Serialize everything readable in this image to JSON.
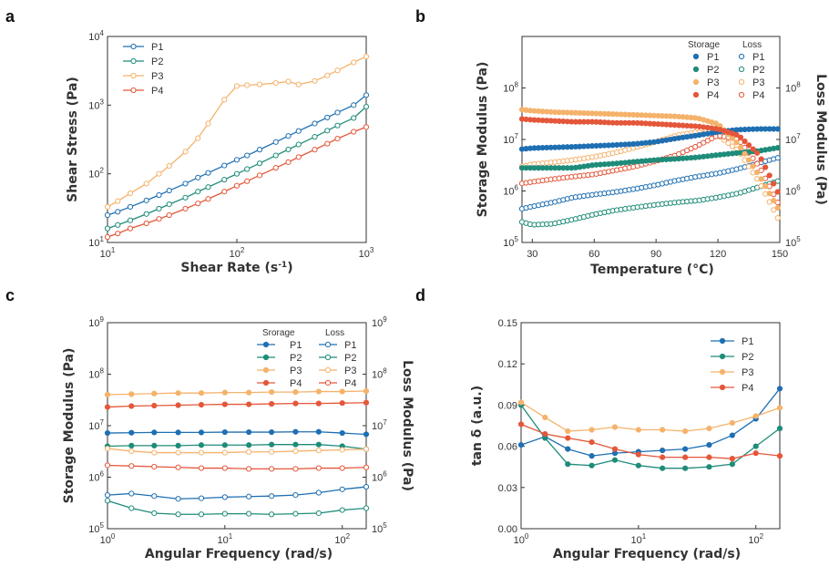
{
  "colors": {
    "P1": "#1f6fb2",
    "P2": "#1f8c7a",
    "P3": "#f5b26b",
    "P4": "#e4573a"
  },
  "chart_data": [
    {
      "panel": "a",
      "type": "line",
      "xscale": "log",
      "yscale": "log",
      "xlim": [
        10,
        1000
      ],
      "ylim": [
        10,
        10000
      ],
      "xlabel": "Shear Rate (s-1)",
      "ylabel": "Shear Stress (Pa)",
      "xticks": [
        "10^1",
        "10^2",
        "10^3"
      ],
      "yticks": [
        "10^1",
        "10^2",
        "10^3",
        "10^4"
      ],
      "legend": "top-left",
      "x": [
        10,
        12,
        15,
        20,
        25,
        30,
        40,
        50,
        60,
        80,
        100,
        120,
        150,
        200,
        250,
        300,
        400,
        500,
        600,
        800,
        1000
      ],
      "series": [
        {
          "name": "P1",
          "values": [
            25,
            28,
            33,
            41,
            49,
            57,
            72,
            88,
            103,
            132,
            160,
            185,
            225,
            290,
            355,
            420,
            540,
            660,
            780,
            1000,
            1400
          ]
        },
        {
          "name": "P2",
          "values": [
            16,
            18,
            21,
            26,
            31,
            36,
            45,
            55,
            64,
            82,
            100,
            117,
            142,
            185,
            226,
            267,
            345,
            425,
            505,
            650,
            950
          ]
        },
        {
          "name": "P3",
          "values": [
            33,
            40,
            52,
            72,
            100,
            130,
            210,
            330,
            540,
            1200,
            1900,
            1950,
            2000,
            2100,
            2200,
            2000,
            2250,
            2700,
            3200,
            4200,
            5100
          ]
        },
        {
          "name": "P4",
          "values": [
            12,
            13.5,
            16,
            19,
            22,
            25,
            31,
            37,
            43,
            55,
            67,
            78,
            95,
            122,
            148,
            175,
            225,
            275,
            325,
            410,
            480
          ]
        }
      ]
    },
    {
      "panel": "b",
      "type": "scatter",
      "xlabel": "Temperature (°C)",
      "ylabel_left": "Storage Modulus (Pa)",
      "ylabel_right": "Loss Modulus (Pa)",
      "xlim": [
        25,
        150
      ],
      "ylim": [
        100000,
        1000000000
      ],
      "yscale": "log",
      "xticks": [
        "30",
        "60",
        "90",
        "120",
        "150"
      ],
      "yticks_left": [
        "10^5",
        "10^6",
        "10^7",
        "10^8"
      ],
      "yticks_right": [
        "10^5",
        "10^6",
        "10^7",
        "10^8"
      ],
      "legend_headers": [
        "Storage",
        "Loss"
      ],
      "legend_labels": [
        "P1",
        "P2",
        "P3",
        "P4"
      ],
      "x": [
        25,
        30,
        40,
        50,
        60,
        70,
        80,
        90,
        100,
        110,
        120,
        130,
        140,
        150
      ],
      "storage": [
        {
          "name": "P1",
          "values": [
            6500000,
            6800000,
            7000000,
            7200000,
            7500000,
            7800000,
            8200000,
            9000000,
            10500000,
            12000000,
            14000000,
            15500000,
            16000000,
            16000000
          ]
        },
        {
          "name": "P2",
          "values": [
            2800000,
            2800000,
            2800000,
            2800000,
            3200000,
            3400000,
            3700000,
            4000000,
            4200000,
            4500000,
            5000000,
            5500000,
            6000000,
            7000000
          ]
        },
        {
          "name": "P3",
          "values": [
            38000000,
            36000000,
            34000000,
            33000000,
            32000000,
            31000000,
            30000000,
            29000000,
            28000000,
            26000000,
            20000000,
            8000000,
            2000000,
            400000
          ]
        },
        {
          "name": "P4",
          "values": [
            25000000,
            24000000,
            23000000,
            22000000,
            22000000,
            21000000,
            21000000,
            20000000,
            19000000,
            18000000,
            16000000,
            12000000,
            5000000,
            800000
          ]
        }
      ],
      "loss": [
        {
          "name": "P1",
          "values": [
            450000,
            500000,
            600000,
            750000,
            850000,
            950000,
            1100000,
            1300000,
            1600000,
            1900000,
            2200000,
            2700000,
            3500000,
            4500000
          ]
        },
        {
          "name": "P2",
          "values": [
            250000,
            220000,
            230000,
            280000,
            350000,
            420000,
            480000,
            540000,
            600000,
            650000,
            750000,
            900000,
            1200000,
            1600000
          ]
        },
        {
          "name": "P3",
          "values": [
            3000000,
            3300000,
            3600000,
            4000000,
            4600000,
            5500000,
            7000000,
            9000000,
            12000000,
            14000000,
            12000000,
            6000000,
            1500000,
            250000
          ]
        },
        {
          "name": "P4",
          "values": [
            1400000,
            1500000,
            1700000,
            1900000,
            2100000,
            2500000,
            3000000,
            3800000,
            5000000,
            7500000,
            12000000,
            10000000,
            3000000,
            500000
          ]
        }
      ]
    },
    {
      "panel": "c",
      "type": "line",
      "xscale": "log",
      "yscale": "log",
      "xlim": [
        1,
        160
      ],
      "ylim": [
        100000,
        1000000000
      ],
      "xlabel": "Angular Frequency (rad/s)",
      "ylabel_left": "Storage Modulus (Pa)",
      "ylabel_right": "Loss Modulus (Pa)",
      "xticks": [
        "10^0",
        "10^1",
        "10^2"
      ],
      "yticks_left": [
        "10^5",
        "10^6",
        "10^7",
        "10^8",
        "10^9"
      ],
      "yticks_right": [
        "10^5",
        "10^6",
        "10^7",
        "10^8",
        "10^9"
      ],
      "legend_headers": [
        "Srorage",
        "Loss"
      ],
      "legend_labels": [
        "P1",
        "P2",
        "P3",
        "P4"
      ],
      "x": [
        1,
        1.6,
        2.5,
        4,
        6.3,
        10,
        16,
        25,
        40,
        63,
        100,
        160
      ],
      "storage": [
        {
          "name": "P1",
          "values": [
            7200000,
            7300000,
            7400000,
            7400000,
            7400000,
            7500000,
            7500000,
            7500000,
            7600000,
            7600000,
            7200000,
            6800000
          ]
        },
        {
          "name": "P2",
          "values": [
            4000000,
            4100000,
            4100000,
            4100000,
            4200000,
            4200000,
            4200000,
            4300000,
            4300000,
            4300000,
            4000000,
            3500000
          ]
        },
        {
          "name": "P3",
          "values": [
            40000000,
            41000000,
            42000000,
            43000000,
            43000000,
            44000000,
            44000000,
            45000000,
            45000000,
            46000000,
            46000000,
            47000000
          ]
        },
        {
          "name": "P4",
          "values": [
            23000000,
            24000000,
            24500000,
            25000000,
            25500000,
            26000000,
            26000000,
            26500000,
            27000000,
            27000000,
            27500000,
            28000000
          ]
        }
      ],
      "loss": [
        {
          "name": "P1",
          "values": [
            450000,
            480000,
            430000,
            380000,
            390000,
            410000,
            420000,
            430000,
            450000,
            500000,
            580000,
            650000
          ]
        },
        {
          "name": "P2",
          "values": [
            350000,
            250000,
            200000,
            190000,
            190000,
            195000,
            195000,
            190000,
            195000,
            200000,
            230000,
            250000
          ]
        },
        {
          "name": "P3",
          "values": [
            3600000,
            3200000,
            3000000,
            3000000,
            3000000,
            3000000,
            3100000,
            3100000,
            3200000,
            3300000,
            3400000,
            3500000
          ]
        },
        {
          "name": "P4",
          "values": [
            1700000,
            1650000,
            1600000,
            1550000,
            1500000,
            1500000,
            1450000,
            1450000,
            1450000,
            1500000,
            1500000,
            1550000
          ]
        }
      ]
    },
    {
      "panel": "d",
      "type": "line",
      "xscale": "log",
      "yscale": "linear",
      "xlim": [
        1,
        160
      ],
      "ylim": [
        0,
        0.15
      ],
      "xlabel": "Angular Frequency (rad/s)",
      "ylabel": "tan δ (a.u.)",
      "xticks": [
        "10^0",
        "10^1",
        "10^2"
      ],
      "yticks": [
        "0.00",
        "0.03",
        "0.06",
        "0.09",
        "0.12",
        "0.15"
      ],
      "legend": "top-right",
      "x": [
        1,
        1.6,
        2.5,
        4,
        6.3,
        10,
        16,
        25,
        40,
        63,
        100,
        160
      ],
      "series": [
        {
          "name": "P1",
          "values": [
            0.061,
            0.067,
            0.058,
            0.053,
            0.055,
            0.056,
            0.057,
            0.058,
            0.061,
            0.068,
            0.08,
            0.102
          ]
        },
        {
          "name": "P2",
          "values": [
            0.09,
            0.066,
            0.047,
            0.046,
            0.05,
            0.046,
            0.044,
            0.044,
            0.045,
            0.047,
            0.06,
            0.073
          ]
        },
        {
          "name": "P3",
          "values": [
            0.092,
            0.081,
            0.071,
            0.072,
            0.074,
            0.072,
            0.072,
            0.071,
            0.073,
            0.077,
            0.082,
            0.088
          ]
        },
        {
          "name": "P4",
          "values": [
            0.076,
            0.069,
            0.066,
            0.063,
            0.058,
            0.054,
            0.052,
            0.052,
            0.052,
            0.051,
            0.055,
            0.053
          ]
        }
      ]
    }
  ]
}
